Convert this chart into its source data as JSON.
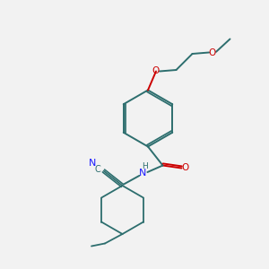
{
  "bg_color": "#f2f2f2",
  "bond_color": "#2d6e6e",
  "n_color": "#1a1aff",
  "o_color": "#cc0000",
  "figsize": [
    3.0,
    3.0
  ],
  "dpi": 100,
  "xlim": [
    0,
    10
  ],
  "ylim": [
    0,
    10
  ],
  "bond_lw": 1.4,
  "ring_lw": 1.3
}
